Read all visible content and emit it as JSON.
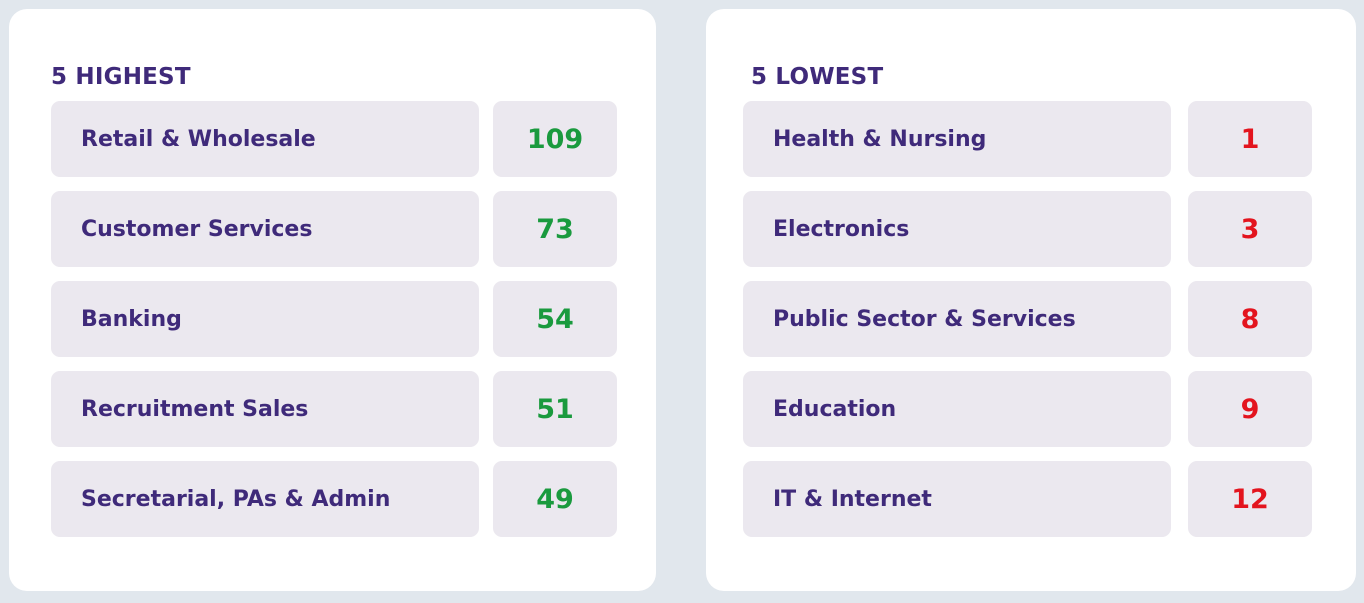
{
  "highest": {
    "title": "5 HIGHEST",
    "value_color": "#1a9a3e",
    "rows": [
      {
        "label": "Retail & Wholesale",
        "value": "109"
      },
      {
        "label": "Customer Services",
        "value": "73"
      },
      {
        "label": "Banking",
        "value": "54"
      },
      {
        "label": "Recruitment Sales",
        "value": "51"
      },
      {
        "label": "Secretarial, PAs & Admin",
        "value": "49"
      }
    ]
  },
  "lowest": {
    "title": "5 LOWEST",
    "value_color": "#e3141e",
    "rows": [
      {
        "label": "Health & Nursing",
        "value": "1"
      },
      {
        "label": "Electronics",
        "value": "3"
      },
      {
        "label": "Public Sector & Services",
        "value": "8"
      },
      {
        "label": "Education",
        "value": "9"
      },
      {
        "label": "IT & Internet",
        "value": "12"
      }
    ]
  }
}
